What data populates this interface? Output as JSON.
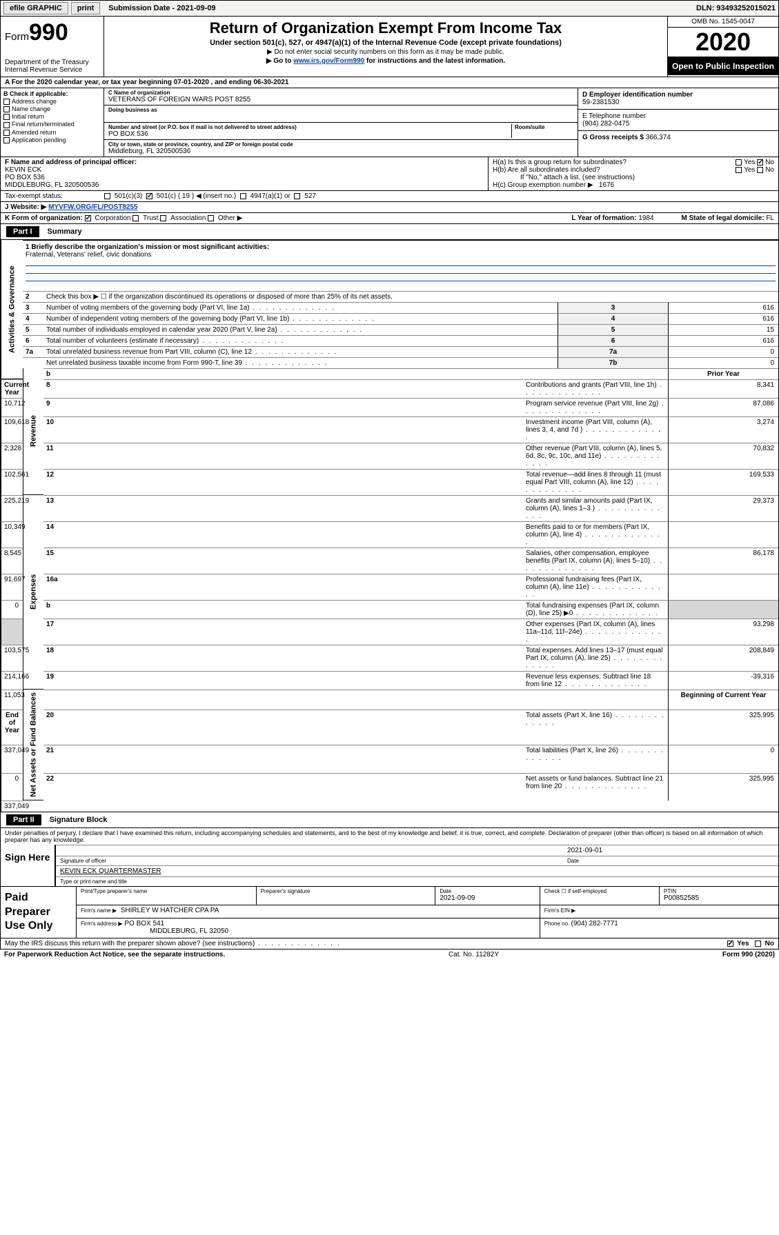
{
  "topbar": {
    "efile": "efile GRAPHIC",
    "print": "print",
    "sub_label": "Submission Date - ",
    "sub_date": "2021-09-09",
    "dln": "DLN: 93493252015021"
  },
  "header": {
    "form_prefix": "Form",
    "form_num": "990",
    "dept": "Department of the Treasury",
    "irs": "Internal Revenue Service",
    "title": "Return of Organization Exempt From Income Tax",
    "subtitle": "Under section 501(c), 527, or 4947(a)(1) of the Internal Revenue Code (except private foundations)",
    "note1": "▶ Do not enter social security numbers on this form as it may be made public.",
    "note2_pre": "▶ Go to ",
    "note2_link": "www.irs.gov/Form990",
    "note2_post": " for instructions and the latest information.",
    "omb": "OMB No. 1545-0047",
    "year": "2020",
    "open": "Open to Public Inspection"
  },
  "period": "A For the 2020 calendar year, or tax year beginning 07-01-2020   , and ending 06-30-2021",
  "colB": {
    "label": "B Check if applicable:",
    "items": [
      "Address change",
      "Name change",
      "Initial return",
      "Final return/terminated",
      "Amended return",
      "Application pending"
    ]
  },
  "colC": {
    "name_lbl": "C Name of organization",
    "name": "VETERANS OF FOREIGN WARS POST 8255",
    "dba_lbl": "Doing business as",
    "addr_lbl": "Number and street (or P.O. box if mail is not delivered to street address)",
    "room_lbl": "Room/suite",
    "addr": "PO BOX 536",
    "city_lbl": "City or town, state or province, country, and ZIP or foreign postal code",
    "city": "Middleburg, FL  320500536"
  },
  "colD": {
    "ein_lbl": "D Employer identification number",
    "ein": "59-2381530",
    "phone_lbl": "E Telephone number",
    "phone": "(904) 282-0475",
    "gross_lbl": "G Gross receipts $ ",
    "gross": "366,374"
  },
  "rowF": {
    "lbl": "F  Name and address of principal officer:",
    "name": "KEVIN ECK",
    "addr1": "PO BOX 536",
    "addr2": "MIDDLEBURG, FL  320500536"
  },
  "rowH": {
    "a": "H(a)  Is this a group return for subordinates?",
    "b": "H(b)  Are all subordinates included?",
    "b_note": "If \"No,\" attach a list. (see instructions)",
    "c": "H(c)  Group exemption number ▶",
    "c_val": "1676",
    "yes": "Yes",
    "no": "No"
  },
  "tax_status": {
    "lbl": "Tax-exempt status:",
    "o1": "501(c)(3)",
    "o2": "501(c) ( 19 ) ◀ (insert no.)",
    "o3": "4947(a)(1) or",
    "o4": "527"
  },
  "website": {
    "lbl": "J Website: ▶",
    "val": "MYVFW.ORG/FL/POST8255"
  },
  "kform": {
    "lbl": "K Form of organization:",
    "o1": "Corporation",
    "o2": "Trust",
    "o3": "Association",
    "o4": "Other ▶",
    "L": "L Year of formation: ",
    "L_val": "1984",
    "M": "M State of legal domicile: ",
    "M_val": "FL"
  },
  "partI": {
    "num": "Part I",
    "title": "Summary"
  },
  "summary": {
    "side1": "Activities & Governance",
    "side2": "Revenue",
    "side3": "Expenses",
    "side4": "Net Assets or Fund Balances",
    "l1_lbl": "1  Briefly describe the organization's mission or most significant activities:",
    "l1_val": "Fraternal, Veterans' relief, civic donations",
    "l2": "Check this box ▶ ☐  if the organization discontinued its operations or disposed of more than 25% of its net assets.",
    "rows_single": [
      {
        "n": "3",
        "t": "Number of voting members of the governing body (Part VI, line 1a)",
        "b": "3",
        "v": "616"
      },
      {
        "n": "4",
        "t": "Number of independent voting members of the governing body (Part VI, line 1b)",
        "b": "4",
        "v": "616"
      },
      {
        "n": "5",
        "t": "Total number of individuals employed in calendar year 2020 (Part V, line 2a)",
        "b": "5",
        "v": "15"
      },
      {
        "n": "6",
        "t": "Total number of volunteers (estimate if necessary)",
        "b": "6",
        "v": "616"
      },
      {
        "n": "7a",
        "t": "Total unrelated business revenue from Part VIII, column (C), line 12",
        "b": "7a",
        "v": "0"
      },
      {
        "n": "",
        "t": "Net unrelated business taxable income from Form 990-T, line 39",
        "b": "7b",
        "v": "0"
      }
    ],
    "hdr_prior": "Prior Year",
    "hdr_curr": "Current Year",
    "rows_rev": [
      {
        "n": "8",
        "t": "Contributions and grants (Part VIII, line 1h)",
        "p": "8,341",
        "c": "10,712"
      },
      {
        "n": "9",
        "t": "Program service revenue (Part VIII, line 2g)",
        "p": "87,086",
        "c": "109,618"
      },
      {
        "n": "10",
        "t": "Investment income (Part VIII, column (A), lines 3, 4, and 7d )",
        "p": "3,274",
        "c": "2,328"
      },
      {
        "n": "11",
        "t": "Other revenue (Part VIII, column (A), lines 5, 6d, 8c, 9c, 10c, and 11e)",
        "p": "70,832",
        "c": "102,561"
      },
      {
        "n": "12",
        "t": "Total revenue—add lines 8 through 11 (must equal Part VIII, column (A), line 12)",
        "p": "169,533",
        "c": "225,219"
      }
    ],
    "rows_exp": [
      {
        "n": "13",
        "t": "Grants and similar amounts paid (Part IX, column (A), lines 1–3 )",
        "p": "29,373",
        "c": "10,349"
      },
      {
        "n": "14",
        "t": "Benefits paid to or for members (Part IX, column (A), line 4)",
        "p": "",
        "c": "8,545"
      },
      {
        "n": "15",
        "t": "Salaries, other compensation, employee benefits (Part IX, column (A), lines 5–10)",
        "p": "86,178",
        "c": "91,697"
      },
      {
        "n": "16a",
        "t": "Professional fundraising fees (Part IX, column (A), line 11e)",
        "p": "",
        "c": "0"
      },
      {
        "n": "b",
        "t": "Total fundraising expenses (Part IX, column (D), line 25) ▶0",
        "p": "shade",
        "c": "shade"
      },
      {
        "n": "17",
        "t": "Other expenses (Part IX, column (A), lines 11a–11d, 11f–24e)",
        "p": "93,298",
        "c": "103,575"
      },
      {
        "n": "18",
        "t": "Total expenses. Add lines 13–17 (must equal Part IX, column (A), line 25)",
        "p": "208,849",
        "c": "214,166"
      },
      {
        "n": "19",
        "t": "Revenue less expenses. Subtract line 18 from line 12",
        "p": "-39,316",
        "c": "11,053"
      }
    ],
    "hdr_beg": "Beginning of Current Year",
    "hdr_end": "End of Year",
    "rows_net": [
      {
        "n": "20",
        "t": "Total assets (Part X, line 16)",
        "p": "325,995",
        "c": "337,049"
      },
      {
        "n": "21",
        "t": "Total liabilities (Part X, line 26)",
        "p": "0",
        "c": "0"
      },
      {
        "n": "22",
        "t": "Net assets or fund balances. Subtract line 21 from line 20",
        "p": "325,995",
        "c": "337,049"
      }
    ]
  },
  "partII": {
    "num": "Part II",
    "title": "Signature Block"
  },
  "sig": {
    "decl": "Under penalties of perjury, I declare that I have examined this return, including accompanying schedules and statements, and to the best of my knowledge and belief, it is true, correct, and complete. Declaration of preparer (other than officer) is based on all information of which preparer has any knowledge.",
    "sign_here": "Sign Here",
    "sig_of": "Signature of officer",
    "date": "2021-09-01",
    "date_lbl": "Date",
    "name": "KEVIN ECK QUARTERMASTER",
    "name_lbl": "Type or print name and title"
  },
  "paid": {
    "lbl": "Paid Preparer Use Only",
    "h1": "Print/Type preparer's name",
    "h2": "Preparer's signature",
    "h3": "Date",
    "h3v": "2021-09-09",
    "h4": "Check ☐ if self-employed",
    "h5": "PTIN",
    "h5v": "P00852585",
    "firm_lbl": "Firm's name      ▶",
    "firm": "SHIRLEY W HATCHER CPA PA",
    "ein_lbl": "Firm's EIN ▶",
    "addr_lbl": "Firm's address ▶",
    "addr": "PO BOX 541",
    "city": "MIDDLEBURG, FL  32050",
    "phone_lbl": "Phone no. ",
    "phone": "(904) 282-7771"
  },
  "footer": {
    "q": "May the IRS discuss this return with the preparer shown above? (see instructions)",
    "yes": "Yes",
    "no": "No",
    "pra": "For Paperwork Reduction Act Notice, see the separate instructions.",
    "cat": "Cat. No. 11282Y",
    "form": "Form 990 (2020)"
  }
}
